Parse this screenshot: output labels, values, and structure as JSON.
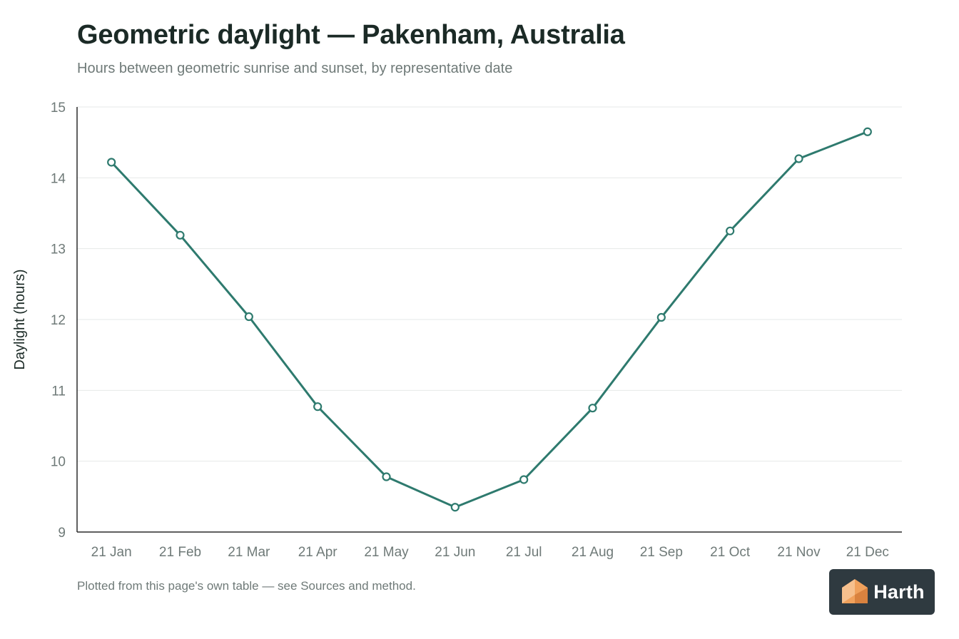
{
  "title": "Geometric daylight — Pakenham, Australia",
  "subtitle": "Hours between geometric sunrise and sunset, by representative date",
  "footnote": "Plotted from this page's own table — see Sources and method.",
  "logo_text": "Harth",
  "colors": {
    "line": "#2e7a6e",
    "grid": "#e6e9e8",
    "axis": "#2b2b2b",
    "tick_text": "#6f7a78",
    "logo_bg": "#2f3a40",
    "logo_accent": "#f0a15c"
  },
  "chart_data": {
    "type": "line",
    "title": "Geometric daylight — Pakenham, Australia",
    "subtitle": "Hours between geometric sunrise and sunset, by representative date",
    "xlabel": "",
    "ylabel": "Daylight (hours)",
    "ylim": [
      9,
      15
    ],
    "yticks": [
      9,
      10,
      11,
      12,
      13,
      14,
      15
    ],
    "grid": true,
    "categories": [
      "21 Jan",
      "21 Feb",
      "21 Mar",
      "21 Apr",
      "21 May",
      "21 Jun",
      "21 Jul",
      "21 Aug",
      "21 Sep",
      "21 Oct",
      "21 Nov",
      "21 Dec"
    ],
    "series": [
      {
        "values": [
          14.22,
          13.19,
          12.04,
          10.77,
          9.78,
          9.35,
          9.74,
          10.75,
          12.03,
          13.25,
          14.27,
          14.65
        ]
      }
    ]
  }
}
